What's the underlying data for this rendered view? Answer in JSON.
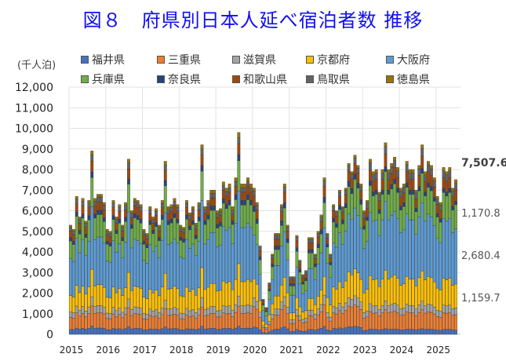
{
  "chart_data": {
    "type": "bar",
    "stacked": true,
    "title": "図８　府県別日本人延べ宿泊者数 推移",
    "ylabel": "(千人泊)",
    "xlabel": "",
    "ylim": [
      0,
      12000
    ],
    "yticks": [
      "0",
      "1,000",
      "2,000",
      "3,000",
      "4,000",
      "5,000",
      "6,000",
      "7,000",
      "8,000",
      "9,000",
      "10,000",
      "11,000",
      "12,000"
    ],
    "ytick_values": [
      0,
      1000,
      2000,
      3000,
      4000,
      5000,
      6000,
      7000,
      8000,
      9000,
      10000,
      11000,
      12000
    ],
    "xtick_labels": [
      "2015",
      "2016",
      "2017",
      "2018",
      "2019",
      "2020",
      "2021",
      "2022",
      "2023",
      "2024",
      "2025"
    ],
    "grid": true,
    "legend_placement": "top",
    "start": "2015-01",
    "months": 127,
    "totals": [
      5300,
      5100,
      6700,
      5700,
      6600,
      5500,
      6500,
      8900,
      6600,
      6800,
      6800,
      6400,
      5100,
      5000,
      6500,
      5700,
      6300,
      5300,
      6400,
      8500,
      6000,
      6600,
      6500,
      6300,
      5100,
      4900,
      6200,
      5700,
      6100,
      5300,
      6500,
      8400,
      6200,
      6300,
      6600,
      6300,
      5300,
      5200,
      6500,
      5900,
      6200,
      5400,
      6400,
      9200,
      6200,
      6500,
      7000,
      7000,
      6000,
      6100,
      7400,
      7100,
      7300,
      6200,
      7600,
      9800,
      7300,
      7300,
      7600,
      7300,
      7100,
      6400,
      4300,
      1700,
      1300,
      2500,
      3900,
      4900,
      4900,
      6300,
      7300,
      5300,
      2800,
      2800,
      4800,
      3600,
      2900,
      3100,
      4700,
      4700,
      3900,
      5000,
      5800,
      7600,
      4900,
      3900,
      6300,
      6000,
      7000,
      6200,
      7100,
      8300,
      7900,
      8700,
      8200,
      7300,
      6000,
      6500,
      8500,
      7900,
      8000,
      6900,
      8000,
      9300,
      8000,
      8300,
      8600,
      8100,
      7100,
      7300,
      8400,
      8000,
      8000,
      7000,
      8200,
      9200,
      7900,
      8400,
      8200,
      7600,
      6700,
      6400,
      8100,
      7900,
      8100,
      7100,
      7507.6
    ],
    "series": [
      {
        "name": "福井県",
        "color": "#4472c4",
        "share_by_year": [
          0.045,
          0.044,
          0.043,
          0.042,
          0.04,
          0.05,
          0.05,
          0.045,
          0.03,
          0.03,
          0.03
        ],
        "last_value": 200
      },
      {
        "name": "三重県",
        "color": "#ed7d31",
        "share_by_year": [
          0.11,
          0.108,
          0.105,
          0.102,
          0.1,
          0.14,
          0.14,
          0.12,
          0.1,
          0.1,
          0.1
        ],
        "last_value": 750
      },
      {
        "name": "滋賀県",
        "color": "#a5a5a5",
        "share_by_year": [
          0.05,
          0.05,
          0.05,
          0.05,
          0.05,
          0.06,
          0.06,
          0.05,
          0.045,
          0.045,
          0.045
        ],
        "last_value": 330
      },
      {
        "name": "京都府",
        "color": "#ffc000",
        "share_by_year": [
          0.15,
          0.152,
          0.155,
          0.158,
          0.16,
          0.13,
          0.12,
          0.15,
          0.16,
          0.16,
          0.16
        ],
        "last_value": 1159.7
      },
      {
        "name": "大阪府",
        "color": "#5b9bd5",
        "share_by_year": [
          0.34,
          0.345,
          0.35,
          0.355,
          0.36,
          0.3,
          0.31,
          0.34,
          0.36,
          0.36,
          0.36
        ],
        "last_value": 2680.4
      },
      {
        "name": "兵庫県",
        "color": "#70ad47",
        "share_by_year": [
          0.16,
          0.158,
          0.155,
          0.153,
          0.15,
          0.16,
          0.16,
          0.16,
          0.155,
          0.155,
          0.155
        ],
        "last_value": 1170.8
      },
      {
        "name": "奈良県",
        "color": "#264478",
        "share_by_year": [
          0.03,
          0.03,
          0.03,
          0.03,
          0.03,
          0.035,
          0.035,
          0.03,
          0.025,
          0.025,
          0.025
        ],
        "last_value": 170
      },
      {
        "name": "和歌山県",
        "color": "#9e480e",
        "share_by_year": [
          0.06,
          0.058,
          0.057,
          0.056,
          0.055,
          0.07,
          0.07,
          0.06,
          0.065,
          0.065,
          0.065
        ],
        "last_value": 550
      },
      {
        "name": "鳥取県",
        "color": "#636363",
        "share_by_year": [
          0.035,
          0.035,
          0.033,
          0.032,
          0.03,
          0.035,
          0.035,
          0.03,
          0.04,
          0.04,
          0.04
        ],
        "last_value": 316.7
      },
      {
        "name": "徳島県",
        "color": "#997300",
        "share_by_year": [
          0.02,
          0.02,
          0.022,
          0.022,
          0.025,
          0.02,
          0.02,
          0.015,
          0.02,
          0.02,
          0.02
        ],
        "last_value": 180
      }
    ],
    "annotations": {
      "total": "7,507.6",
      "hyogo": "1,170.8",
      "osaka": "2,680.4",
      "kyoto": "1,159.7"
    }
  }
}
